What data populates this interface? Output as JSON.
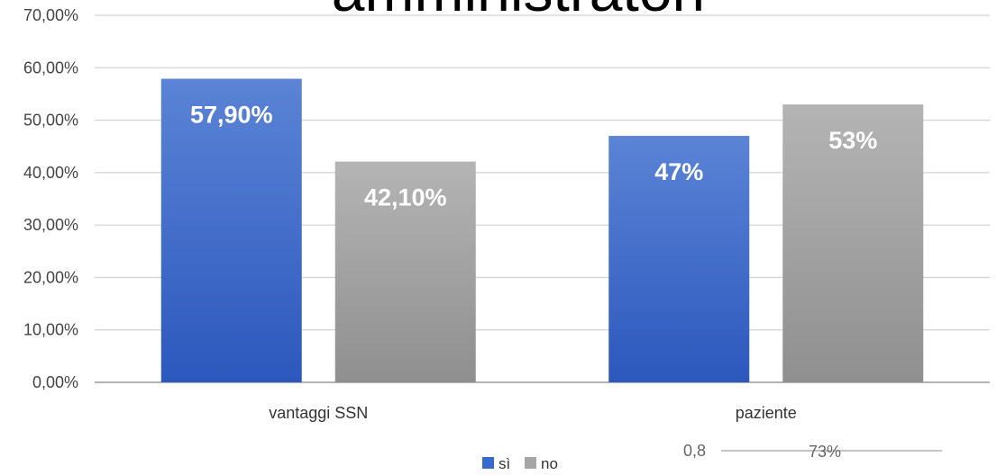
{
  "chart_data": {
    "type": "bar",
    "title": "amministratori",
    "categories": [
      "vantaggi SSN",
      "paziente"
    ],
    "series": [
      {
        "name": "sì",
        "values": [
          57.9,
          47.0
        ],
        "labels": [
          "57,90%",
          "47%"
        ],
        "color": "#3a69cc"
      },
      {
        "name": "no",
        "values": [
          42.1,
          53.0
        ],
        "labels": [
          "42,10%",
          "53%"
        ],
        "color": "#a6a6a6"
      }
    ],
    "ylim": [
      0,
      70
    ],
    "ytick_labels": [
      "0,00%",
      "10,00%",
      "20,00%",
      "30,00%",
      "40,00%",
      "50,00%",
      "60,00%",
      "70,00%"
    ],
    "grid": true,
    "legend_position": "bottom",
    "xlabel": "",
    "ylabel": ""
  },
  "overlapping_fragment": {
    "left_text": "0,8",
    "right_text": "73%"
  }
}
